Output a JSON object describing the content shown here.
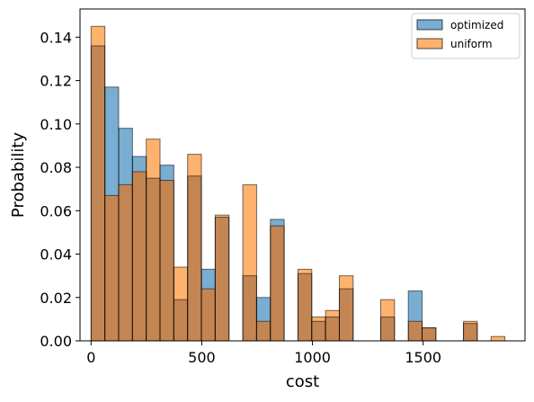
{
  "chart_data": {
    "type": "bar",
    "title": "",
    "xlabel": "cost",
    "ylabel": "Probability",
    "xlim": [
      -50,
      1960
    ],
    "ylim": [
      0,
      0.153
    ],
    "xticks": [
      0,
      500,
      1000,
      1500
    ],
    "yticks": [
      0.0,
      0.02,
      0.04,
      0.06,
      0.08,
      0.1,
      0.12,
      0.14
    ],
    "xtick_labels": [
      "0",
      "500",
      "1000",
      "1500"
    ],
    "ytick_labels": [
      "0.00",
      "0.02",
      "0.04",
      "0.06",
      "0.08",
      "0.10",
      "0.12",
      "0.14"
    ],
    "legend_position": "top-right",
    "bin_width": 62.3,
    "bin_starts": [
      0,
      62.3,
      124.6,
      186.9,
      249.2,
      311.5,
      373.8,
      436.1,
      498.4,
      560.7,
      623,
      685.3,
      747.6,
      809.9,
      872.2,
      934.5,
      996.8,
      1059.1,
      1121.4,
      1183.7,
      1246,
      1308.3,
      1370.6,
      1432.9,
      1495.2,
      1557.5,
      1619.8,
      1682.1,
      1744.4,
      1806.7
    ],
    "series": [
      {
        "name": "optimized",
        "color": "#1f77b4",
        "values": [
          0.136,
          0.117,
          0.098,
          0.085,
          0.075,
          0.081,
          0.019,
          0.076,
          0.033,
          0.057,
          0,
          0.03,
          0.02,
          0.056,
          0,
          0.031,
          0.009,
          0.011,
          0.024,
          0,
          0,
          0.011,
          0,
          0.023,
          0.006,
          0,
          0,
          0.008,
          0,
          0
        ]
      },
      {
        "name": "uniform",
        "color": "#ff7f0e",
        "values": [
          0.145,
          0.067,
          0.072,
          0.078,
          0.093,
          0.074,
          0.034,
          0.086,
          0.024,
          0.058,
          0,
          0.072,
          0.009,
          0.053,
          0,
          0.033,
          0.011,
          0.014,
          0.03,
          0,
          0,
          0.019,
          0,
          0.009,
          0.006,
          0,
          0,
          0.009,
          0,
          0.002
        ]
      }
    ]
  }
}
